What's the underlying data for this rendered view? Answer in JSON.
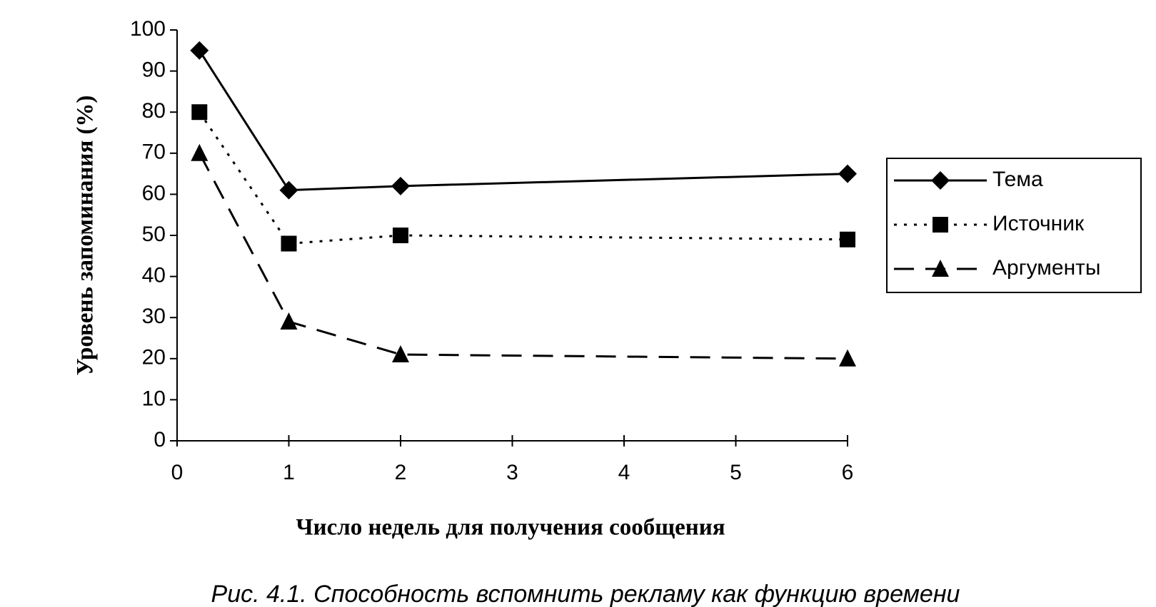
{
  "chart_data": {
    "type": "line",
    "y_label": "Уровень запоминания (%)",
    "x_label": "Число недель для получения сообщения",
    "caption": "Рис. 4.1. Способность вспомнить рекламу как функцию времени",
    "x": [
      0.2,
      1,
      2,
      6
    ],
    "xlim": [
      0,
      6
    ],
    "xticks": [
      0,
      1,
      2,
      3,
      4,
      5,
      6
    ],
    "ylim": [
      0,
      100
    ],
    "yticks": [
      0,
      10,
      20,
      30,
      40,
      50,
      60,
      70,
      80,
      90,
      100
    ],
    "grid": false,
    "series": [
      {
        "name": "Тема",
        "color": "#000000",
        "line_style": "solid",
        "marker": "diamond",
        "values": [
          95,
          61,
          62,
          65
        ]
      },
      {
        "name": "Источник",
        "color": "#000000",
        "line_style": "dotted",
        "marker": "square",
        "values": [
          80,
          48,
          50,
          49
        ]
      },
      {
        "name": "Аргументы",
        "color": "#000000",
        "line_style": "dashed",
        "marker": "triangle",
        "values": [
          70,
          29,
          21,
          20
        ]
      }
    ]
  }
}
